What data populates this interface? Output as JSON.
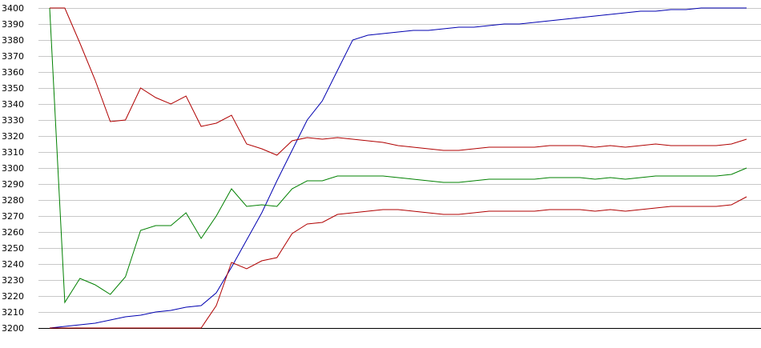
{
  "chart_data": {
    "type": "line",
    "title": "",
    "xlabel": "",
    "ylabel": "",
    "ylim": [
      3200,
      3400
    ],
    "yticks": [
      3200,
      3210,
      3220,
      3230,
      3240,
      3250,
      3260,
      3270,
      3280,
      3290,
      3300,
      3310,
      3320,
      3330,
      3340,
      3350,
      3360,
      3370,
      3380,
      3390,
      3400
    ],
    "grid": true,
    "legend": "none",
    "x": [
      0,
      1,
      2,
      3,
      4,
      5,
      6,
      7,
      8,
      9,
      10,
      11,
      12,
      13,
      14,
      15,
      16,
      17,
      18,
      19,
      20,
      21,
      22,
      23,
      24,
      25,
      26,
      27,
      28,
      29,
      30,
      31,
      32,
      33,
      34,
      35,
      36,
      37,
      38,
      39,
      40,
      41,
      42,
      43,
      44,
      45,
      46
    ],
    "series": [
      {
        "color": "#0000b0",
        "values": [
          3200,
          3201,
          3202,
          3203,
          3205,
          3207,
          3208,
          3210,
          3211,
          3213,
          3214,
          3222,
          3238,
          3255,
          3272,
          3292,
          3311,
          3330,
          3342,
          3361,
          3380,
          3383,
          3384,
          3385,
          3386,
          3386,
          3387,
          3388,
          3388,
          3389,
          3390,
          3390,
          3391,
          3392,
          3393,
          3394,
          3395,
          3396,
          3397,
          3398,
          3398,
          3399,
          3399,
          3400,
          3400,
          3400,
          3400
        ]
      },
      {
        "color": "#008000",
        "values": [
          3400,
          3216,
          3231,
          3227,
          3221,
          3232,
          3261,
          3264,
          3264,
          3272,
          3256,
          3270,
          3287,
          3276,
          3277,
          3276,
          3287,
          3292,
          3292,
          3295,
          3295,
          3295,
          3295,
          3294,
          3293,
          3292,
          3291,
          3291,
          3292,
          3293,
          3293,
          3293,
          3293,
          3294,
          3294,
          3294,
          3293,
          3294,
          3293,
          3294,
          3295,
          3295,
          3295,
          3295,
          3295,
          3296,
          3300
        ]
      },
      {
        "color": "#b00000",
        "values": [
          3400,
          3400,
          3378,
          3355,
          3329,
          3330,
          3350,
          3344,
          3340,
          3345,
          3326,
          3328,
          3333,
          3315,
          3312,
          3308,
          3317,
          3319,
          3318,
          3319,
          3318,
          3317,
          3316,
          3314,
          3313,
          3312,
          3311,
          3311,
          3312,
          3313,
          3313,
          3313,
          3313,
          3314,
          3314,
          3314,
          3313,
          3314,
          3313,
          3314,
          3315,
          3314,
          3314,
          3314,
          3314,
          3315,
          3318
        ]
      },
      {
        "color": "#b00000",
        "values": [
          3200,
          3200,
          3200,
          3200,
          3200,
          3200,
          3200,
          3200,
          3200,
          3200,
          3200,
          3214,
          3241,
          3237,
          3242,
          3244,
          3259,
          3265,
          3266,
          3271,
          3272,
          3273,
          3274,
          3274,
          3273,
          3272,
          3271,
          3271,
          3272,
          3273,
          3273,
          3273,
          3273,
          3274,
          3274,
          3274,
          3273,
          3274,
          3273,
          3274,
          3275,
          3276,
          3276,
          3276,
          3276,
          3277,
          3282
        ]
      }
    ]
  }
}
